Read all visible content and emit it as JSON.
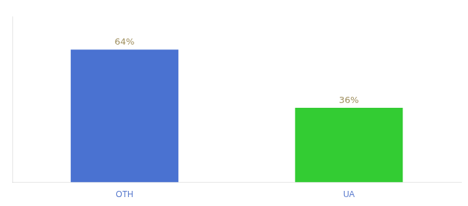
{
  "chart_data": {
    "type": "bar",
    "categories": [
      "OTH",
      "UA"
    ],
    "values": [
      64,
      36
    ],
    "value_labels": [
      "64%",
      "36%"
    ],
    "colors": [
      "#4a72d1",
      "#33cc33"
    ],
    "ylim": [
      0,
      80
    ],
    "grid": false,
    "data_labels": true,
    "tick_labels": "x"
  }
}
